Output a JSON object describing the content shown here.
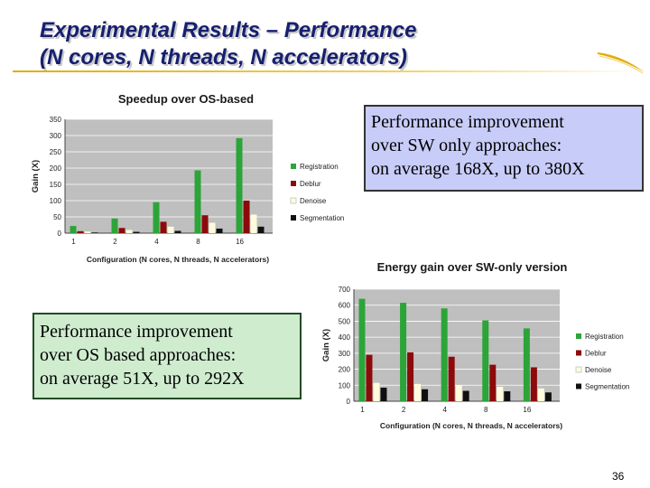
{
  "slide": {
    "title_line1": "Experimental Results – Performance",
    "title_line2": "(N cores, N threads, N accelerators)",
    "page_number": "36"
  },
  "callouts": {
    "top": [
      "Performance improvement",
      "over SW only approaches:",
      "on average 168X, up to 380X"
    ],
    "left": [
      "Performance improvement",
      "over OS based approaches:",
      "on average 51X, up to 292X"
    ]
  },
  "colors": {
    "title": "#17206f",
    "accent": "#e1ad0c",
    "plot_bg": "#bfbfbf",
    "registration": "#2ca438",
    "deblur": "#8c0a0a",
    "denoise": "#fffbdc",
    "segmentation": "#101010"
  },
  "chart_data": [
    {
      "type": "bar",
      "title": "Speedup over OS-based",
      "xlabel": "Configuration (N cores, N threads, N accelerators)",
      "ylabel": "Gain (X)",
      "categories": [
        "1",
        "2",
        "4",
        "8",
        "16"
      ],
      "yticks": [
        0,
        50,
        100,
        150,
        200,
        250,
        300,
        350
      ],
      "ylim": [
        0,
        350
      ],
      "grid": true,
      "legend_position": "right",
      "series": [
        {
          "name": "Registration",
          "color": "#2ca438",
          "values": [
            22,
            45,
            95,
            193,
            292
          ]
        },
        {
          "name": "Deblur",
          "color": "#8c0a0a",
          "values": [
            6,
            16,
            35,
            55,
            100
          ]
        },
        {
          "name": "Denoise",
          "color": "#fffbdc",
          "values": [
            5,
            10,
            20,
            32,
            57
          ]
        },
        {
          "name": "Segmentation",
          "color": "#101010",
          "values": [
            2,
            4,
            7,
            14,
            20
          ]
        }
      ]
    },
    {
      "type": "bar",
      "title": "Energy gain over SW-only version",
      "xlabel": "Configuration (N cores, N threads, N accelerators)",
      "ylabel": "Gain (X)",
      "categories": [
        "1",
        "2",
        "4",
        "8",
        "16"
      ],
      "yticks": [
        0,
        100,
        200,
        300,
        400,
        500,
        600,
        700
      ],
      "ylim": [
        0,
        700
      ],
      "grid": true,
      "legend_position": "right",
      "series": [
        {
          "name": "Registration",
          "color": "#2ca438",
          "values": [
            640,
            615,
            580,
            505,
            455
          ]
        },
        {
          "name": "Deblur",
          "color": "#8c0a0a",
          "values": [
            290,
            305,
            278,
            228,
            212
          ]
        },
        {
          "name": "Denoise",
          "color": "#fffbdc",
          "values": [
            115,
            108,
            100,
            90,
            80
          ]
        },
        {
          "name": "Segmentation",
          "color": "#101010",
          "values": [
            85,
            75,
            65,
            62,
            55
          ]
        }
      ]
    }
  ]
}
